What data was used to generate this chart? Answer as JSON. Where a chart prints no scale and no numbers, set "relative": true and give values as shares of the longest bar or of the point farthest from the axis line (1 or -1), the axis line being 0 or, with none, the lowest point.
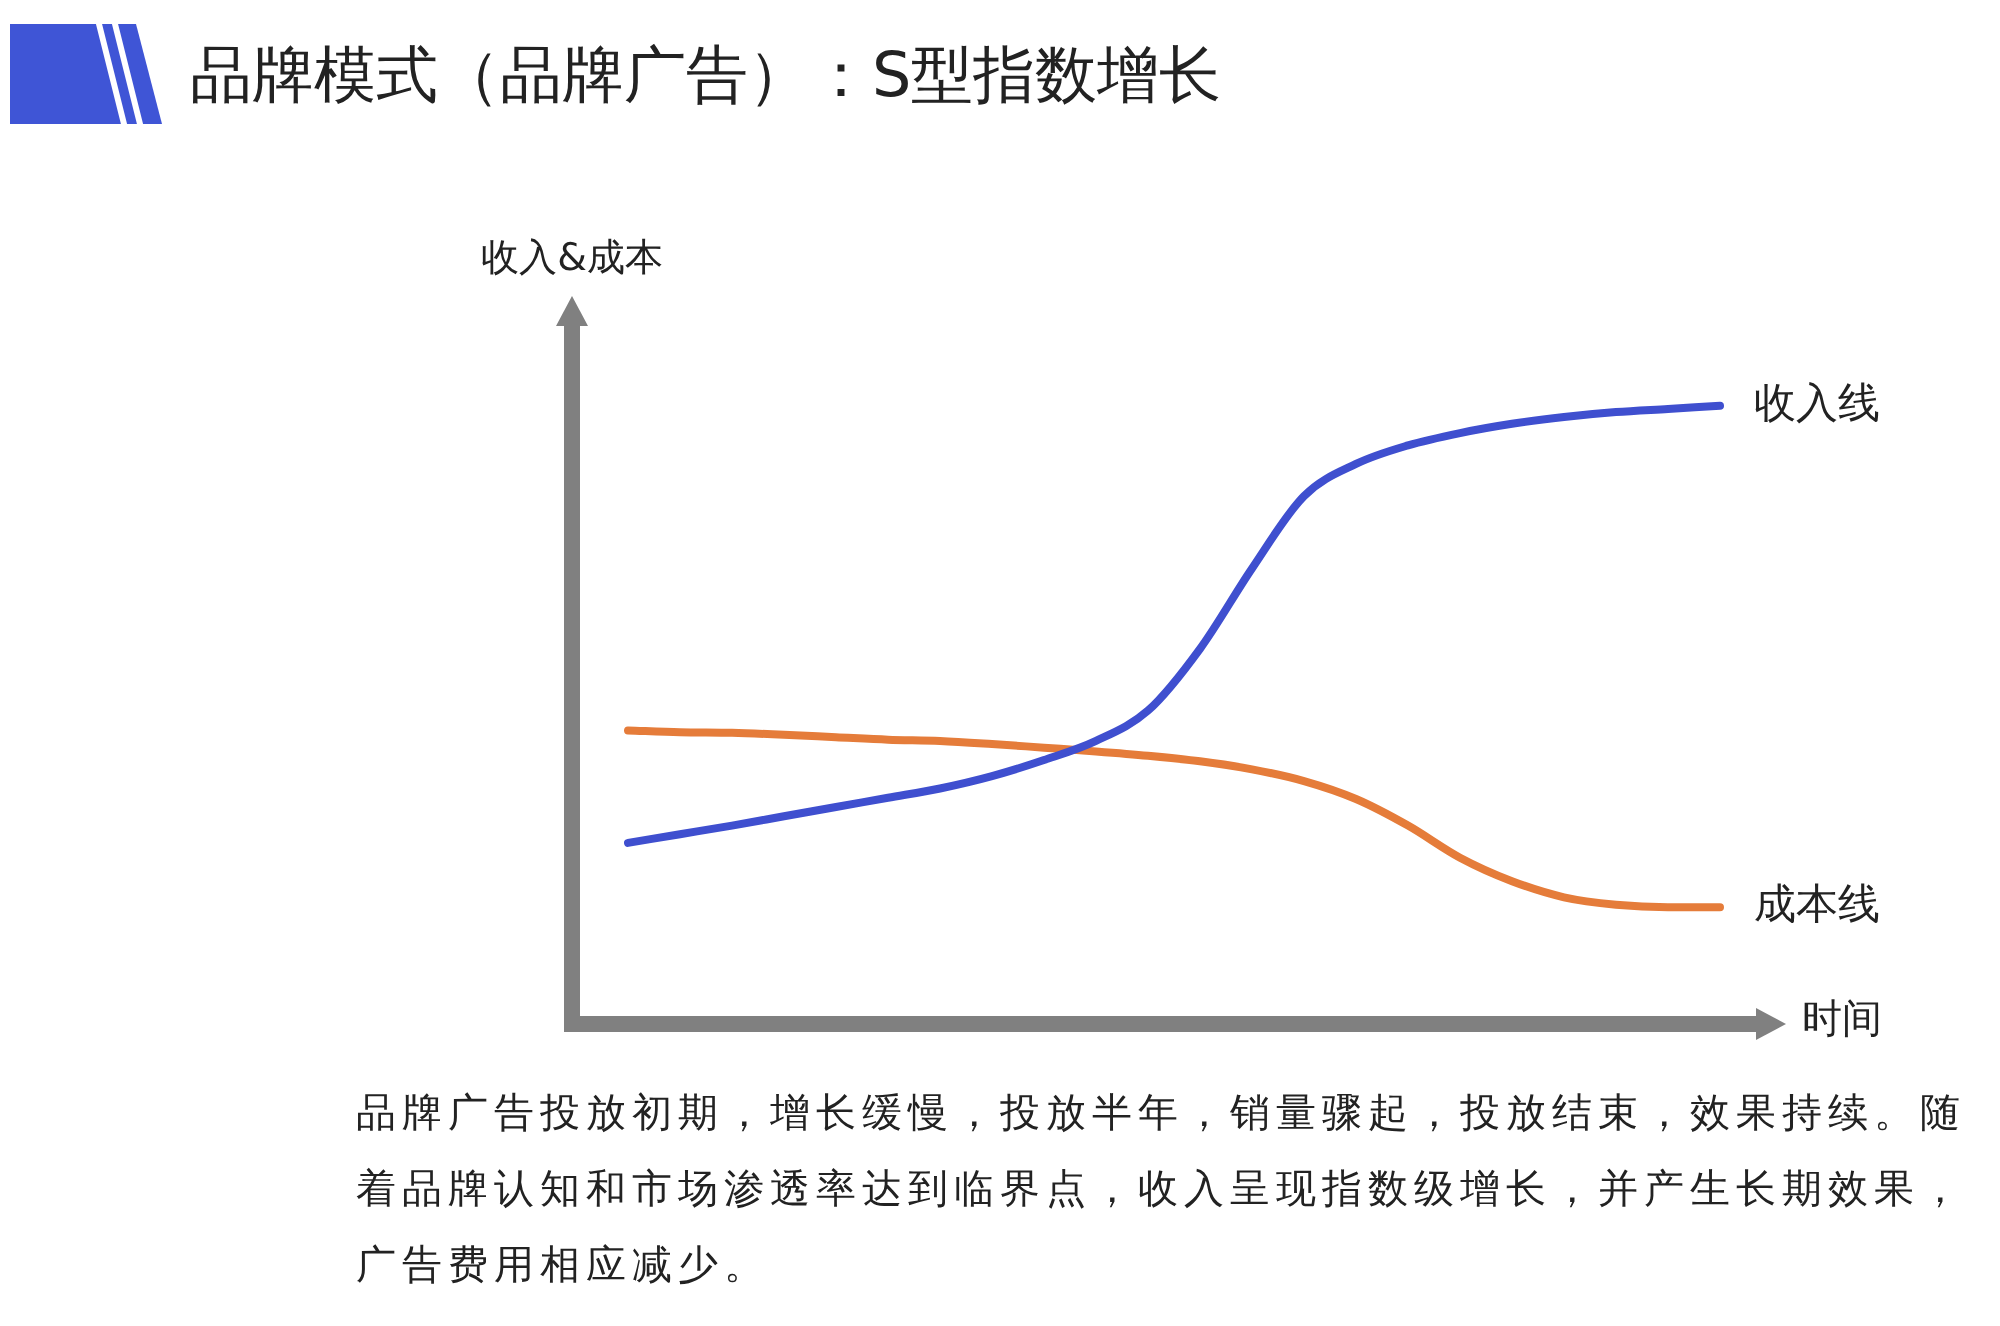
{
  "chart_data": {
    "type": "line",
    "title": "品牌模式（品牌广告）：S型指数增长",
    "xlabel": "时间",
    "ylabel": "收入&成本",
    "categories": [
      null,
      null,
      null,
      null,
      null,
      null,
      null,
      null,
      null,
      null,
      null,
      null,
      null,
      null,
      null,
      null,
      null,
      null,
      null,
      null,
      null,
      null
    ],
    "relative": true,
    "marker": "none",
    "series": [
      {
        "name": "收入线",
        "color": "#3f4fcf",
        "values": [
          0.293,
          0.307,
          0.321,
          0.336,
          0.351,
          0.366,
          0.381,
          0.401,
          0.427,
          0.458,
          0.507,
          0.607,
          0.737,
          0.854,
          0.906,
          0.936,
          0.956,
          0.971,
          0.982,
          0.99,
          0.995,
          1.0
        ]
      },
      {
        "name": "成本线",
        "color": "#e57c3a",
        "values": [
          0.475,
          0.472,
          0.471,
          0.468,
          0.464,
          0.46,
          0.458,
          0.453,
          0.447,
          0.441,
          0.434,
          0.425,
          0.412,
          0.393,
          0.364,
          0.321,
          0.269,
          0.231,
          0.205,
          0.193,
          0.189,
          0.189
        ]
      }
    ],
    "annotations": [
      "品牌广告投放初期，增长缓慢，投放半年，销量骤起，投放结束，效果持续。随着品牌认知和市场渗透率达到临界点，收入呈现指数级增长，并产生长期效果，广告费用相应减少。"
    ]
  }
}
